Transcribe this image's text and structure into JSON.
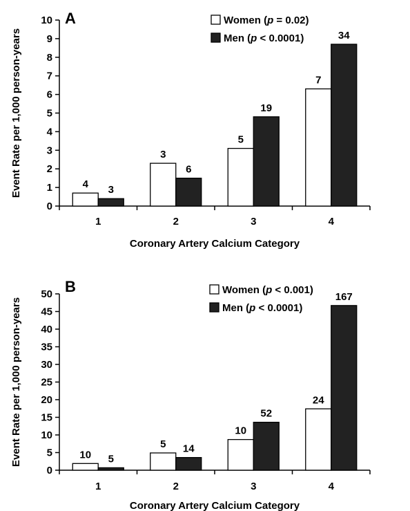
{
  "chart_data": [
    {
      "type": "bar",
      "panel_label": "A",
      "categories": [
        "1",
        "2",
        "3",
        "4"
      ],
      "series": [
        {
          "name": "Women",
          "p_value": "(p = 0.02)",
          "values": [
            0.7,
            2.3,
            3.1,
            6.3
          ],
          "labels": [
            "4",
            "3",
            "5",
            "7"
          ],
          "color": "#ffffff"
        },
        {
          "name": "Men",
          "p_value": "(p < 0.0001)",
          "values": [
            0.4,
            1.5,
            4.8,
            8.7
          ],
          "labels": [
            "3",
            "6",
            "19",
            "34"
          ],
          "color": "#222222"
        }
      ],
      "xlabel": "Coronary Artery Calcium Category",
      "ylabel": "Event Rate per 1,000 person-years",
      "ylim": [
        0,
        10
      ],
      "yticks": [
        0,
        1,
        2,
        3,
        4,
        5,
        6,
        7,
        8,
        9,
        10
      ],
      "legend_position": "top-right",
      "grid": false
    },
    {
      "type": "bar",
      "panel_label": "B",
      "categories": [
        "1",
        "2",
        "3",
        "4"
      ],
      "series": [
        {
          "name": "Women",
          "p_value": "(p < 0.001)",
          "values": [
            1.9,
            4.9,
            8.7,
            17.4
          ],
          "labels": [
            "10",
            "5",
            "10",
            "24"
          ],
          "color": "#ffffff"
        },
        {
          "name": "Men",
          "p_value": "(p < 0.0001)",
          "values": [
            0.7,
            3.6,
            13.6,
            46.7
          ],
          "labels": [
            "5",
            "14",
            "52",
            "167"
          ],
          "color": "#222222"
        }
      ],
      "xlabel": "Coronary Artery Calcium Category",
      "ylabel": "Event Rate per 1,000 person-years",
      "ylim": [
        0,
        50
      ],
      "yticks": [
        0,
        5,
        10,
        15,
        20,
        25,
        30,
        35,
        40,
        45,
        50
      ],
      "legend_position": "top-right",
      "grid": false
    }
  ]
}
